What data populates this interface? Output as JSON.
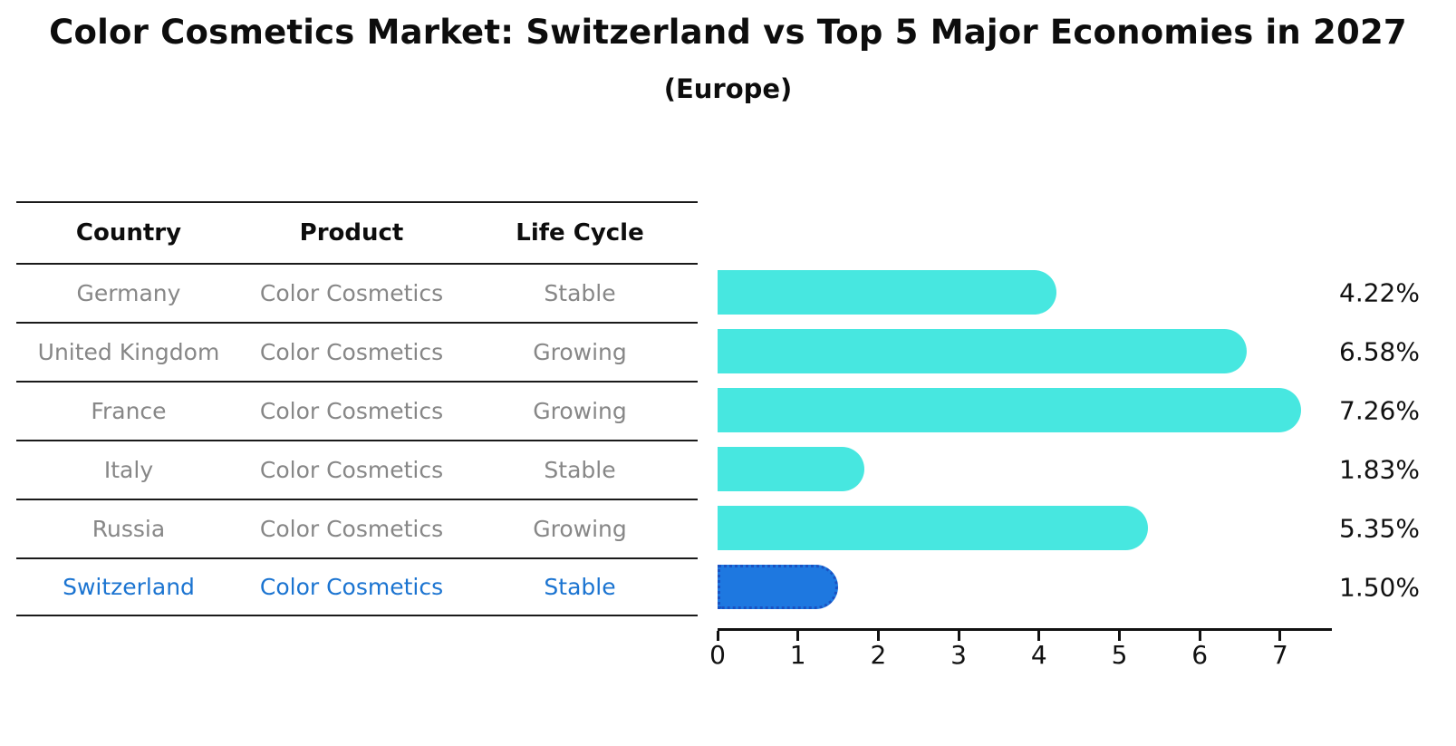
{
  "chart_data": {
    "type": "bar",
    "orientation": "horizontal",
    "title": "Color Cosmetics Market: Switzerland vs Top 5 Major Economies in 2027",
    "subtitle": "(Europe)",
    "categories": [
      "Germany",
      "United Kingdom",
      "France",
      "Italy",
      "Russia",
      "Switzerland"
    ],
    "values": [
      4.22,
      6.58,
      7.26,
      1.83,
      5.35,
      1.5
    ],
    "value_labels": [
      "4.22%",
      "6.58%",
      "7.26%",
      "1.83%",
      "5.35%",
      "1.50%"
    ],
    "xlabel": "",
    "ylabel": "",
    "xlim": [
      0,
      7.64
    ],
    "x_ticks": [
      0,
      1,
      2,
      3,
      4,
      5,
      6,
      7
    ],
    "x_tick_labels": [
      "0",
      "1",
      "2",
      "3",
      "4",
      "5",
      "6",
      "7"
    ],
    "grid": "off",
    "legend": "none",
    "bar_color": "#47E7E0",
    "highlight_bar_color": "#1E78E0",
    "highlight_border_color": "#1a52c2",
    "highlight_index": 5
  },
  "table": {
    "headers": [
      "Country",
      "Product",
      "Life Cycle"
    ],
    "rows": [
      {
        "country": "Germany",
        "product": "Color Cosmetics",
        "life_cycle": "Stable",
        "highlight": false
      },
      {
        "country": "United Kingdom",
        "product": "Color Cosmetics",
        "life_cycle": "Growing",
        "highlight": false
      },
      {
        "country": "France",
        "product": "Color Cosmetics",
        "life_cycle": "Growing",
        "highlight": false
      },
      {
        "country": "Italy",
        "product": "Color Cosmetics",
        "life_cycle": "Stable",
        "highlight": false
      },
      {
        "country": "Russia",
        "product": "Color Cosmetics",
        "life_cycle": "Growing",
        "highlight": false
      },
      {
        "country": "Switzerland",
        "product": "Color Cosmetics",
        "life_cycle": "Stable",
        "highlight": true
      }
    ]
  },
  "colors": {
    "table_text_gray": "#878787",
    "highlight_text_blue": "#1b74d1",
    "line_color": "#1a1a1a",
    "text_color": "#111111"
  }
}
